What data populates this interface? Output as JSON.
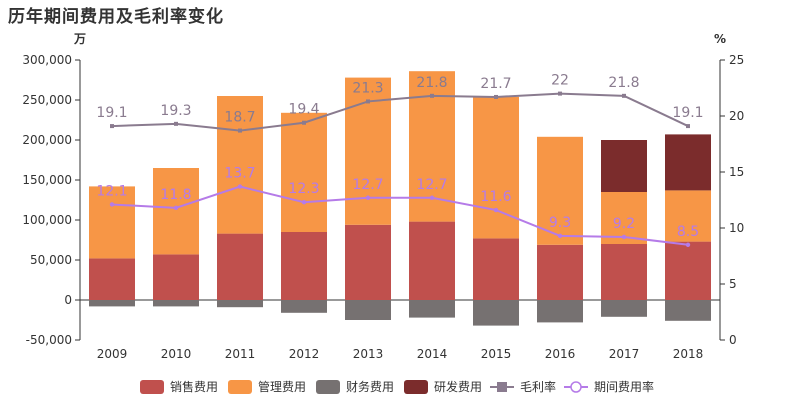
{
  "title": "历年期间费用及毛利率变化",
  "chart_data": {
    "type": "bar",
    "title": "历年期间费用及毛利率变化",
    "categories": [
      "2009",
      "2010",
      "2011",
      "2012",
      "2013",
      "2014",
      "2015",
      "2016",
      "2017",
      "2018"
    ],
    "y_left": {
      "unit": "万",
      "range": [
        -50000,
        300000
      ],
      "ticks": [
        "-50,000",
        "0",
        "50,000",
        "100,000",
        "150,000",
        "200,000",
        "250,000",
        "300,000"
      ]
    },
    "y_right": {
      "unit": "%",
      "range": [
        0,
        25
      ],
      "ticks": [
        "0",
        "5",
        "10",
        "15",
        "20",
        "25"
      ]
    },
    "bar_series": [
      {
        "name": "销售费用",
        "color": "#c0504d",
        "values": [
          52000,
          57000,
          83000,
          85000,
          94000,
          98000,
          77000,
          69000,
          70000,
          73000
        ]
      },
      {
        "name": "管理费用",
        "color": "#f79646",
        "values": [
          90000,
          108000,
          172000,
          149000,
          184000,
          188000,
          177000,
          135000,
          65000,
          64000
        ]
      },
      {
        "name": "财务费用",
        "color": "#767171",
        "values": [
          -8000,
          -8000,
          -9000,
          -16000,
          -25000,
          -22000,
          -32000,
          -28000,
          -21000,
          -26000
        ]
      },
      {
        "name": "研发费用",
        "color": "#7b2c2c",
        "values": [
          0,
          0,
          0,
          0,
          0,
          0,
          0,
          0,
          65000,
          70000
        ]
      }
    ],
    "line_series": [
      {
        "name": "毛利率",
        "color": "#8a7b8f",
        "marker": "square",
        "values": [
          19.1,
          19.3,
          18.7,
          19.4,
          21.3,
          21.8,
          21.7,
          22,
          21.8,
          19.1
        ]
      },
      {
        "name": "期间费用率",
        "color": "#b57be8",
        "marker": "circle",
        "values": [
          12.1,
          11.8,
          13.7,
          12.3,
          12.7,
          12.7,
          11.6,
          9.3,
          9.2,
          8.5
        ]
      }
    ],
    "legend_position": "bottom",
    "grid": false
  }
}
